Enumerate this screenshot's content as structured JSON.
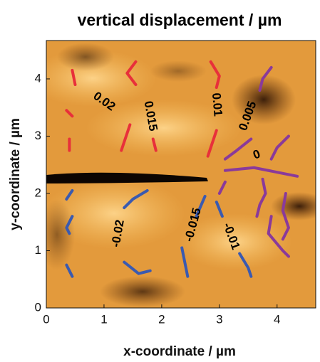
{
  "chart_data": {
    "type": "contour",
    "title": "vertical displacement / µm",
    "xlabel": "x-coordinate / µm",
    "ylabel": "y-coordinate / µm",
    "xlim": [
      0,
      4.67
    ],
    "ylim": [
      0,
      4.67
    ],
    "xticks": [
      0,
      1,
      2,
      3,
      4
    ],
    "yticks": [
      0,
      1,
      2,
      3,
      4
    ],
    "contours": [
      {
        "level": 0.02,
        "color": "#e8303a",
        "x": [
          0.45,
          0.5,
          null,
          0.35,
          0.45,
          null,
          0.4,
          0.4
        ],
        "y": [
          4.15,
          3.9,
          null,
          3.45,
          3.35,
          null,
          2.95,
          2.75
        ]
      },
      {
        "level": 0.015,
        "color": "#e8303a",
        "x": [
          1.55,
          1.4,
          1.55,
          null,
          1.45,
          1.35,
          1.3,
          null,
          1.85,
          1.9
        ],
        "y": [
          4.3,
          4.1,
          3.9,
          null,
          3.2,
          2.9,
          2.75,
          null,
          2.95,
          2.75
        ]
      },
      {
        "level": 0.01,
        "color": "#e8303a",
        "x": [
          2.85,
          3.0,
          2.95,
          null,
          2.95,
          2.85,
          2.8
        ],
        "y": [
          4.3,
          4.05,
          3.85,
          null,
          3.1,
          2.8,
          2.65
        ]
      },
      {
        "level": 0.005,
        "color": "#8a3a9a",
        "x": [
          3.9,
          3.75,
          3.7,
          null,
          3.55,
          3.3,
          3.1
        ],
        "y": [
          4.2,
          4.0,
          3.8,
          null,
          2.95,
          2.75,
          2.6
        ]
      },
      {
        "level": 0,
        "color": "#8a3a9a",
        "x": [
          4.2,
          4.0,
          3.9,
          null,
          3.1,
          3.6,
          4.1,
          4.35,
          null,
          3.75,
          3.8,
          3.7,
          3.65,
          null,
          3.1,
          3.0,
          null,
          4.15,
          4.1,
          4.2,
          4.1,
          null,
          3.9,
          3.85,
          4.1,
          4.2
        ],
        "y": [
          3.0,
          2.8,
          2.6,
          null,
          2.4,
          2.45,
          2.35,
          2.3,
          null,
          2.25,
          2.0,
          1.8,
          1.6,
          null,
          2.2,
          2.0,
          null,
          2.0,
          1.7,
          1.4,
          1.2,
          null,
          1.6,
          1.3,
          1.0,
          0.9
        ]
      },
      {
        "level": -0.02,
        "color": "#3a5ab0",
        "x": [
          0.45,
          0.35,
          null,
          0.45,
          0.35,
          0.4,
          null,
          0.35,
          0.45,
          null,
          1.75,
          1.5,
          1.35,
          null,
          1.35,
          1.6,
          1.8
        ],
        "y": [
          2.05,
          1.9,
          null,
          1.6,
          1.4,
          1.3,
          null,
          0.75,
          0.55,
          null,
          2.05,
          1.9,
          1.75,
          null,
          0.8,
          0.6,
          0.65
        ]
      },
      {
        "level": -0.015,
        "color": "#3a5ab0",
        "x": [
          2.75,
          2.6,
          null,
          2.35,
          2.4,
          2.45
        ],
        "y": [
          1.95,
          1.6,
          null,
          1.05,
          0.8,
          0.55
        ]
      },
      {
        "level": -0.01,
        "color": "#3a5ab0",
        "x": [
          2.95,
          3.05,
          null,
          3.35,
          3.5,
          3.55
        ],
        "y": [
          1.85,
          1.6,
          null,
          0.95,
          0.7,
          0.55
        ]
      }
    ]
  }
}
